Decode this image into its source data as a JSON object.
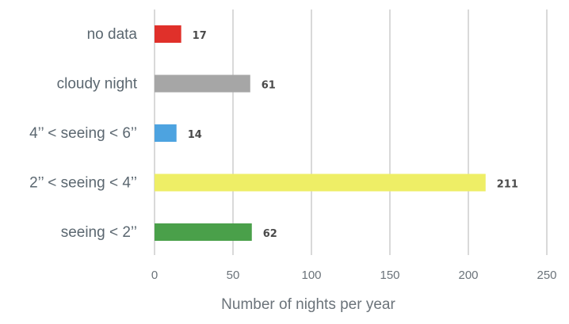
{
  "chart_data": {
    "type": "bar",
    "orientation": "horizontal",
    "categories": [
      "no data",
      "cloudy night",
      "4’’ < seeing < 6’’",
      "2’’ < seeing < 4’’",
      "seeing < 2’’"
    ],
    "values": [
      17,
      61,
      14,
      211,
      62
    ],
    "colors": [
      "#e0302a",
      "#a6a6a6",
      "#4da3e0",
      "#eeee66",
      "#4aa04a"
    ],
    "xlabel": "Number of nights per year",
    "ylabel": "",
    "xlim": [
      0,
      250
    ],
    "xticks": [
      0,
      50,
      100,
      150,
      200,
      250
    ],
    "grid": "vertical",
    "legend": "none"
  }
}
